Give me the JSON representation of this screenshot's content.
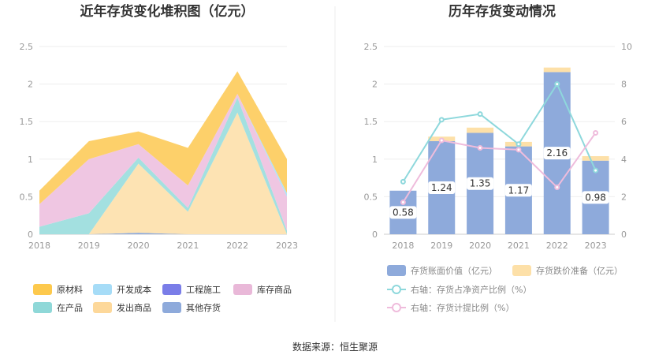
{
  "source": "数据来源：恒生聚源",
  "chart_data": [
    {
      "type": "area",
      "stacked": true,
      "title": "近年存货变化堆积图（亿元）",
      "categories": [
        "2018",
        "2019",
        "2020",
        "2021",
        "2022",
        "2023"
      ],
      "ylim": [
        0,
        2.5
      ],
      "yticks": [
        "0",
        "0.5",
        "1",
        "1.5",
        "2",
        "2.5"
      ],
      "grid": true,
      "legend_position": "bottom",
      "series": [
        {
          "name": "其他存货",
          "color": "#8eaadb",
          "values": [
            0,
            0,
            0.02,
            0,
            0,
            0
          ]
        },
        {
          "name": "发出商品",
          "color": "#fde3b3",
          "values": [
            0,
            0,
            0.92,
            0.3,
            1.62,
            0
          ]
        },
        {
          "name": "在产品",
          "color": "#a3e0e0",
          "values": [
            0.1,
            0.28,
            0.08,
            0.05,
            0.2,
            0.05
          ]
        },
        {
          "name": "库存商品",
          "color": "#efc6e2",
          "values": [
            0.3,
            0.72,
            0.18,
            0.3,
            0.05,
            0.45
          ]
        },
        {
          "name": "工程施工",
          "color": "#7a7de8",
          "values": [
            0,
            0,
            0,
            0,
            0,
            0
          ]
        },
        {
          "name": "开发成本",
          "color": "#b3e2f5",
          "values": [
            0,
            0,
            0,
            0,
            0,
            0.05
          ]
        },
        {
          "name": "原材料",
          "color": "#fdd06a",
          "values": [
            0.18,
            0.24,
            0.17,
            0.5,
            0.3,
            0.45
          ]
        }
      ],
      "legend": [
        {
          "name": "原材料",
          "color": "#fdc94d"
        },
        {
          "name": "开发成本",
          "color": "#a6dcf7"
        },
        {
          "name": "工程施工",
          "color": "#7a7de8"
        },
        {
          "name": "库存商品",
          "color": "#e9b8d8"
        },
        {
          "name": "在产品",
          "color": "#8fd8d8"
        },
        {
          "name": "发出商品",
          "color": "#fdd89a"
        },
        {
          "name": "其他存货",
          "color": "#8eaadb"
        }
      ]
    },
    {
      "type": "bar",
      "stacked": true,
      "title": "历年存货变动情况",
      "categories": [
        "2018",
        "2019",
        "2020",
        "2021",
        "2022",
        "2023"
      ],
      "ylim": [
        0,
        2.5
      ],
      "yticks": [
        "0",
        "0.5",
        "1",
        "1.5",
        "2",
        "2.5"
      ],
      "y2lim": [
        0,
        10
      ],
      "y2ticks": [
        "0",
        "2",
        "4",
        "6",
        "8",
        "10"
      ],
      "grid": true,
      "legend_position": "bottom",
      "series": [
        {
          "name": "存货账面价值（亿元）",
          "color": "#8eaadb",
          "values": [
            0.58,
            1.24,
            1.35,
            1.17,
            2.16,
            0.98
          ],
          "labels": [
            "0.58",
            "1.24",
            "1.35",
            "1.17",
            "2.16",
            "0.98"
          ]
        },
        {
          "name": "存货跌价准备（亿元）",
          "color": "#fde0a8",
          "values": [
            0,
            0.06,
            0.07,
            0.06,
            0.06,
            0.06
          ]
        }
      ],
      "lines": [
        {
          "name": "右轴：存货占净资产比例（%）",
          "color": "#8ed8dc",
          "axis": "right",
          "values": [
            2.8,
            6.1,
            6.4,
            4.8,
            8.0,
            3.4
          ]
        },
        {
          "name": "右轴：存货计提比例（%）",
          "color": "#efbcdc",
          "axis": "right",
          "values": [
            1.7,
            5.0,
            4.6,
            4.5,
            2.5,
            5.4
          ]
        }
      ]
    }
  ]
}
